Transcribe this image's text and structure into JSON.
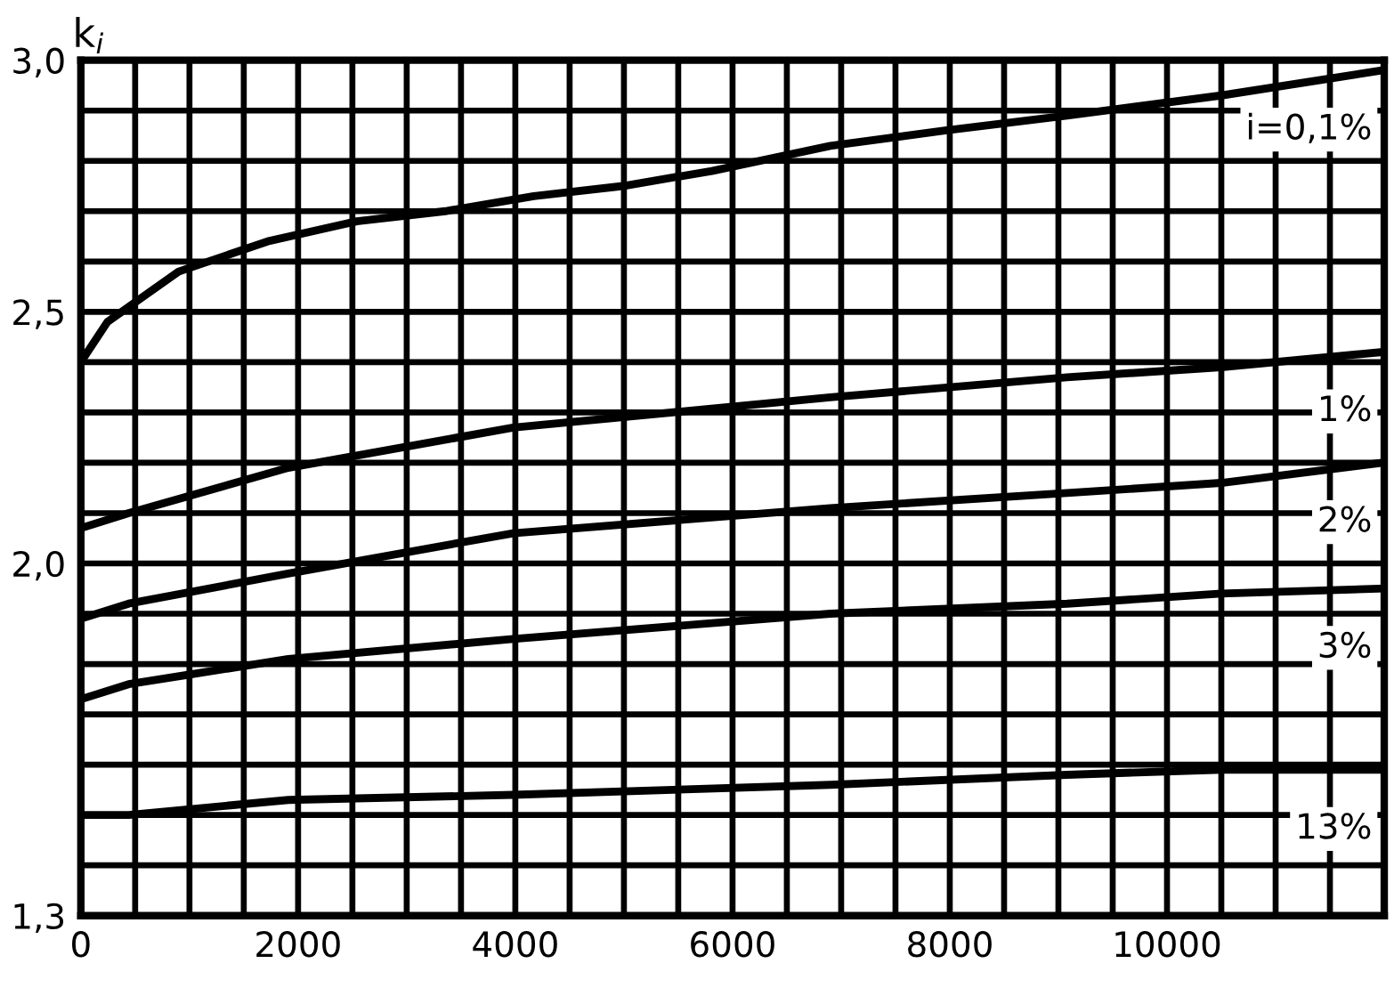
{
  "chart_data": {
    "type": "line",
    "ylabel": "k$_{i}$",
    "x": [
      0,
      245,
      900,
      1720,
      2540,
      3355,
      4170,
      4990,
      5810,
      6900,
      7940,
      9080,
      10500,
      11980
    ],
    "series": [
      {
        "name": "i=0,1%",
        "color": "#000000",
        "values": [
          2.4,
          2.48,
          2.58,
          2.64,
          2.68,
          2.7,
          2.73,
          2.75,
          2.78,
          2.83,
          2.86,
          2.89,
          2.93,
          2.98
        ]
      },
      {
        "name": "1%",
        "color": "#000000",
        "x": [
          0,
          440,
          1910,
          3980,
          6900,
          9080,
          10500,
          11980
        ],
        "values": [
          2.07,
          2.1,
          2.19,
          2.27,
          2.33,
          2.37,
          2.39,
          2.42
        ]
      },
      {
        "name": "2%",
        "color": "#000000",
        "x": [
          0,
          440,
          1910,
          3980,
          6900,
          9080,
          10500,
          11980
        ],
        "values": [
          1.89,
          1.92,
          1.98,
          2.06,
          2.11,
          2.14,
          2.16,
          2.2
        ]
      },
      {
        "name": "3%",
        "color": "#000000",
        "x": [
          0,
          440,
          1910,
          3980,
          6900,
          9080,
          10500,
          11980
        ],
        "values": [
          1.73,
          1.76,
          1.81,
          1.85,
          1.9,
          1.92,
          1.94,
          1.95
        ]
      },
      {
        "name": "13%",
        "color": "#000000",
        "x": [
          0,
          440,
          1910,
          3980,
          6900,
          9080,
          10500,
          11980
        ],
        "values": [
          1.5,
          1.5,
          1.53,
          1.54,
          1.56,
          1.58,
          1.59,
          1.59
        ]
      }
    ],
    "xlim": [
      0,
      12000
    ],
    "xticks": [
      0,
      {
        "value": 500,
        "label": null
      },
      {
        "value": 1000,
        "label": null
      },
      {
        "value": 1500,
        "label": null
      },
      2000,
      {
        "value": 2500,
        "label": null
      },
      {
        "value": 3000,
        "label": null
      },
      {
        "value": 3500,
        "label": null
      },
      4000,
      {
        "value": 4500,
        "label": null
      },
      {
        "value": 5000,
        "label": null
      },
      {
        "value": 5500,
        "label": null
      },
      6000,
      {
        "value": 6500,
        "label": null
      },
      {
        "value": 7000,
        "label": null
      },
      {
        "value": 7500,
        "label": null
      },
      8000,
      {
        "value": 8500,
        "label": null
      },
      {
        "value": 9000,
        "label": null
      },
      {
        "value": 9500,
        "label": null
      },
      10000,
      {
        "value": 10500,
        "label": null
      },
      {
        "value": 11000,
        "label": null
      },
      {
        "value": 11500,
        "label": null
      }
    ],
    "ylim": [
      1.3,
      3.0
    ],
    "yticks": [
      {
        "value": 1.3,
        "label": "1,3"
      },
      {
        "value": 1.4,
        "label": null
      },
      {
        "value": 1.5,
        "label": null
      },
      {
        "value": 1.6,
        "label": null
      },
      {
        "value": 1.7,
        "label": null
      },
      {
        "value": 1.8,
        "label": null
      },
      {
        "value": 1.9,
        "label": null
      },
      {
        "value": 2.0,
        "label": "2,0"
      },
      {
        "value": 2.1,
        "label": null
      },
      {
        "value": 2.2,
        "label": null
      },
      {
        "value": 2.3,
        "label": null
      },
      {
        "value": 2.4,
        "label": null
      },
      {
        "value": 2.5,
        "label": "2,5"
      },
      {
        "value": 2.6,
        "label": null
      },
      {
        "value": 2.7,
        "label": null
      },
      {
        "value": 2.8,
        "label": null
      },
      {
        "value": 2.9,
        "label": null
      },
      {
        "value": 3.0,
        "label": "3,0"
      }
    ],
    "grid": true,
    "marker": "none",
    "line_style": "solid"
  }
}
